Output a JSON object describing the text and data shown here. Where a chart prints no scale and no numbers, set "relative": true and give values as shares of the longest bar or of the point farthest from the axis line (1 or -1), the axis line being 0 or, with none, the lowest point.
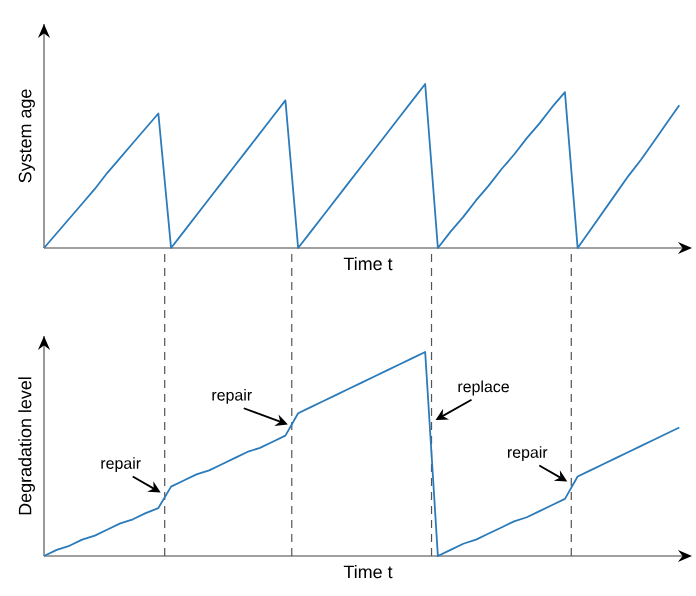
{
  "chart_data": [
    {
      "type": "line",
      "relative": true,
      "ylabel": "System age",
      "xlabel": "Time t",
      "categories": [
        null,
        null,
        null,
        null,
        null,
        null,
        null,
        null,
        null,
        null,
        null,
        null,
        null,
        null,
        null,
        null,
        null,
        null,
        null,
        null,
        null,
        null,
        null,
        null,
        null,
        null,
        null,
        null,
        null,
        null,
        null,
        null,
        null,
        null,
        null,
        null,
        null,
        null,
        null,
        null,
        null,
        null,
        null,
        null,
        null,
        null,
        null,
        null,
        null,
        null,
        null
      ],
      "series": [
        {
          "color": "#2b7bba",
          "values": [
            0,
            0.09,
            0.18,
            0.27,
            0.36,
            0.46,
            0.55,
            0.64,
            0.73,
            0.82,
            0,
            0.1,
            0.2,
            0.3,
            0.4,
            0.5,
            0.6,
            0.7,
            0.8,
            0.9,
            0,
            0.1,
            0.2,
            0.3,
            0.4,
            0.5,
            0.6,
            0.7,
            0.8,
            0.9,
            1.0,
            0,
            0.1,
            0.19,
            0.29,
            0.38,
            0.48,
            0.57,
            0.67,
            0.76,
            0.86,
            0.95,
            0,
            0.11,
            0.22,
            0.33,
            0.44,
            0.54,
            0.65,
            0.76,
            0.87
          ]
        }
      ]
    },
    {
      "type": "line",
      "relative": true,
      "ylabel": "Degradation level",
      "xlabel": "Time t",
      "categories": [
        null,
        null,
        null,
        null,
        null,
        null,
        null,
        null,
        null,
        null,
        null,
        null,
        null,
        null,
        null,
        null,
        null,
        null,
        null,
        null,
        null,
        null,
        null,
        null,
        null,
        null,
        null,
        null,
        null,
        null,
        null,
        null,
        null,
        null,
        null,
        null,
        null,
        null,
        null,
        null,
        null,
        null,
        null,
        null,
        null,
        null,
        null,
        null,
        null,
        null,
        null
      ],
      "series": [
        {
          "color": "#2b7bba",
          "values": [
            0,
            0.03,
            0.05,
            0.08,
            0.1,
            0.13,
            0.16,
            0.18,
            0.21,
            0.235,
            0.34,
            0.37,
            0.4,
            0.42,
            0.45,
            0.48,
            0.51,
            0.53,
            0.56,
            0.59,
            0.7,
            0.73,
            0.76,
            0.79,
            0.82,
            0.85,
            0.88,
            0.91,
            0.94,
            0.97,
            1.0,
            0,
            0.03,
            0.06,
            0.08,
            0.11,
            0.14,
            0.17,
            0.19,
            0.22,
            0.25,
            0.28,
            0.39,
            0.42,
            0.45,
            0.48,
            0.51,
            0.54,
            0.57,
            0.6,
            0.63
          ]
        }
      ],
      "annotations": [
        "repair",
        "repair",
        "replace",
        "repair"
      ]
    }
  ]
}
